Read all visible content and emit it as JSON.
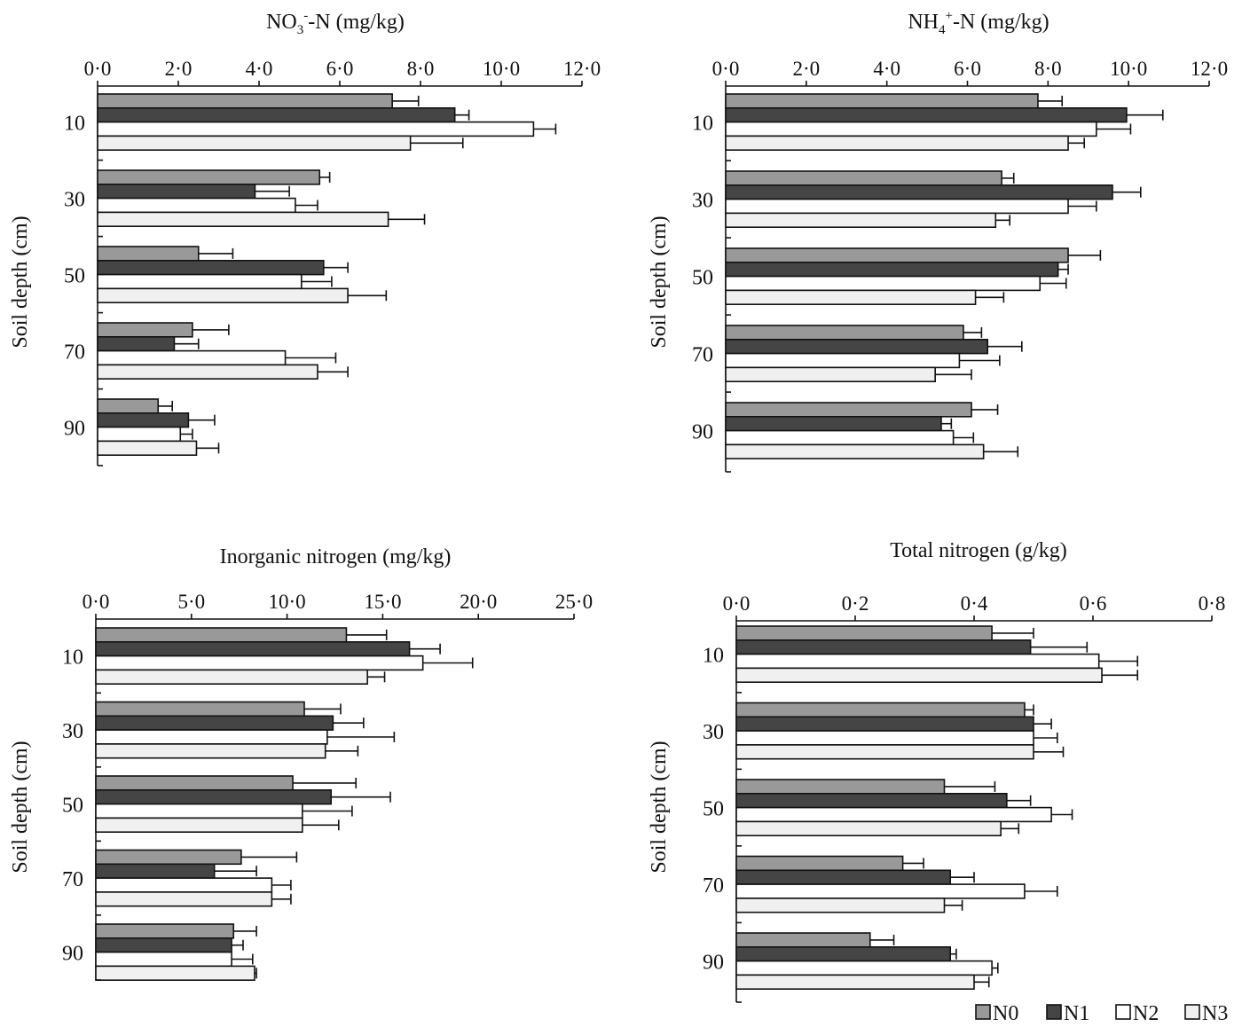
{
  "legend": [
    {
      "label": "N0",
      "color": "#999999"
    },
    {
      "label": "N1",
      "color": "#454545"
    },
    {
      "label": "N2",
      "color": "#ffffff"
    },
    {
      "label": "N3",
      "color": "#f0f0f0"
    }
  ],
  "chart_data": [
    {
      "type": "bar",
      "orientation": "horizontal",
      "title": "NO3−-N (mg/kg)",
      "title_parts": [
        "NO",
        "3",
        "-",
        "-N (mg/kg)"
      ],
      "ylabel": "Soil depth (cm)",
      "categories": [
        "10",
        "30",
        "50",
        "70",
        "90"
      ],
      "xlim": [
        0,
        12
      ],
      "xticks": [
        "0·0",
        "2·0",
        "4·0",
        "6·0",
        "8·0",
        "10·0",
        "12·0"
      ],
      "series": [
        {
          "name": "N0",
          "values": [
            7.3,
            5.5,
            2.5,
            2.35,
            1.5
          ],
          "errors": [
            0.65,
            0.25,
            0.85,
            0.9,
            0.35
          ]
        },
        {
          "name": "N1",
          "values": [
            8.85,
            3.9,
            5.6,
            1.9,
            2.25
          ],
          "errors": [
            0.35,
            0.85,
            0.6,
            0.6,
            0.65
          ]
        },
        {
          "name": "N2",
          "values": [
            10.8,
            4.9,
            5.05,
            4.65,
            2.05
          ],
          "errors": [
            0.55,
            0.55,
            0.75,
            1.25,
            0.3
          ]
        },
        {
          "name": "N3",
          "values": [
            7.75,
            7.2,
            6.2,
            5.45,
            2.45
          ],
          "errors": [
            1.3,
            0.9,
            0.95,
            0.75,
            0.55
          ]
        }
      ]
    },
    {
      "type": "bar",
      "orientation": "horizontal",
      "title": "NH4+-N (mg/kg)",
      "title_parts": [
        "NH",
        "4",
        "+",
        "-N (mg/kg)"
      ],
      "ylabel": "Soil depth (cm)",
      "categories": [
        "10",
        "30",
        "50",
        "70",
        "90"
      ],
      "xlim": [
        0,
        12
      ],
      "xticks": [
        "0·0",
        "2·0",
        "4·0",
        "6·0",
        "8·0",
        "10·0",
        "12·0"
      ],
      "series": [
        {
          "name": "N0",
          "values": [
            7.75,
            6.85,
            8.5,
            5.9,
            6.1
          ],
          "errors": [
            0.6,
            0.3,
            0.8,
            0.45,
            0.65
          ]
        },
        {
          "name": "N1",
          "values": [
            9.95,
            9.6,
            8.25,
            6.5,
            5.35
          ],
          "errors": [
            0.9,
            0.7,
            0.25,
            0.85,
            0.25
          ]
        },
        {
          "name": "N2",
          "values": [
            9.2,
            8.5,
            7.8,
            5.8,
            5.65
          ],
          "errors": [
            0.85,
            0.7,
            0.65,
            1.0,
            0.5
          ]
        },
        {
          "name": "N3",
          "values": [
            8.5,
            6.7,
            6.2,
            5.2,
            6.4
          ],
          "errors": [
            0.4,
            0.35,
            0.7,
            0.9,
            0.85
          ]
        }
      ]
    },
    {
      "type": "bar",
      "orientation": "horizontal",
      "title": "Inorganic nitrogen (mg/kg)",
      "ylabel": "Soil depth (cm)",
      "categories": [
        "10",
        "30",
        "50",
        "70",
        "90"
      ],
      "xlim": [
        0,
        25
      ],
      "xticks": [
        "0·0",
        "5·0",
        "10·0",
        "15·0",
        "20·0",
        "25·0"
      ],
      "series": [
        {
          "name": "N0",
          "values": [
            13.1,
            10.9,
            10.3,
            7.6,
            7.2
          ],
          "errors": [
            2.1,
            1.9,
            3.3,
            2.9,
            1.2
          ]
        },
        {
          "name": "N1",
          "values": [
            16.4,
            12.4,
            12.3,
            6.2,
            7.1
          ],
          "errors": [
            1.6,
            1.6,
            3.1,
            2.2,
            0.6
          ]
        },
        {
          "name": "N2",
          "values": [
            17.1,
            12.1,
            10.8,
            9.2,
            7.1
          ],
          "errors": [
            2.6,
            3.5,
            2.6,
            1.0,
            1.1
          ]
        },
        {
          "name": "N3",
          "values": [
            14.2,
            12.0,
            10.8,
            9.2,
            8.3
          ],
          "errors": [
            0.9,
            1.7,
            1.9,
            1.0,
            0.1
          ]
        }
      ]
    },
    {
      "type": "bar",
      "orientation": "horizontal",
      "title": "Total nitrogen (g/kg)",
      "ylabel": "Soil depth (cm)",
      "categories": [
        "10",
        "30",
        "50",
        "70",
        "90"
      ],
      "xlim": [
        0,
        0.8
      ],
      "xticks": [
        "0·0",
        "0·2",
        "0·4",
        "0·6",
        "0·8"
      ],
      "series": [
        {
          "name": "N0",
          "values": [
            0.43,
            0.485,
            0.35,
            0.28,
            0.225
          ],
          "errors": [
            0.07,
            0.015,
            0.085,
            0.035,
            0.04
          ]
        },
        {
          "name": "N1",
          "values": [
            0.495,
            0.5,
            0.455,
            0.36,
            0.36
          ],
          "errors": [
            0.095,
            0.03,
            0.04,
            0.04,
            0.01
          ]
        },
        {
          "name": "N2",
          "values": [
            0.61,
            0.5,
            0.53,
            0.485,
            0.43
          ],
          "errors": [
            0.065,
            0.04,
            0.035,
            0.055,
            0.01
          ]
        },
        {
          "name": "N3",
          "values": [
            0.615,
            0.5,
            0.445,
            0.35,
            0.4
          ],
          "errors": [
            0.06,
            0.05,
            0.03,
            0.03,
            0.025
          ]
        }
      ]
    }
  ]
}
